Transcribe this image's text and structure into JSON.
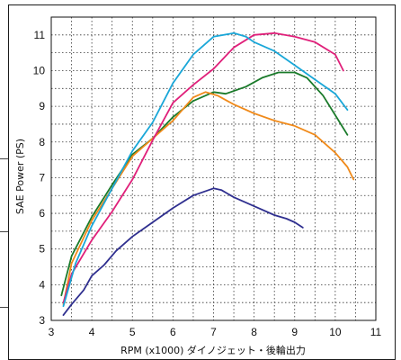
{
  "chart_data": {
    "type": "line",
    "title": "",
    "xlabel": "RPM (x1000) ダイノジェット・後輪出力",
    "ylabel": "SAE Power (PS)",
    "xlim": [
      3,
      11
    ],
    "ylim": [
      3,
      11.5
    ],
    "x_ticks": [
      "3",
      "4",
      "5",
      "6",
      "7",
      "8",
      "9",
      "10",
      "11"
    ],
    "y_ticks": [
      "3",
      "4",
      "5",
      "6",
      "7",
      "8",
      "9",
      "10",
      "11"
    ],
    "grid": true,
    "grid_minor": true,
    "legend": "none",
    "series": [
      {
        "color": "#2f2f8f",
        "points": [
          [
            3.3,
            3.15
          ],
          [
            3.5,
            3.45
          ],
          [
            3.8,
            3.85
          ],
          [
            4.0,
            4.25
          ],
          [
            4.3,
            4.55
          ],
          [
            4.6,
            4.95
          ],
          [
            5.0,
            5.35
          ],
          [
            5.5,
            5.75
          ],
          [
            6.0,
            6.15
          ],
          [
            6.5,
            6.5
          ],
          [
            7.0,
            6.7
          ],
          [
            7.2,
            6.65
          ],
          [
            7.5,
            6.45
          ],
          [
            8.0,
            6.2
          ],
          [
            8.5,
            5.95
          ],
          [
            8.8,
            5.85
          ],
          [
            9.0,
            5.75
          ],
          [
            9.2,
            5.6
          ]
        ]
      },
      {
        "color": "#1a7a2a",
        "points": [
          [
            3.25,
            3.7
          ],
          [
            3.5,
            4.8
          ],
          [
            4.0,
            5.9
          ],
          [
            4.5,
            6.8
          ],
          [
            5.0,
            7.65
          ],
          [
            5.5,
            8.1
          ],
          [
            6.0,
            8.7
          ],
          [
            6.5,
            9.15
          ],
          [
            7.0,
            9.4
          ],
          [
            7.3,
            9.35
          ],
          [
            7.8,
            9.55
          ],
          [
            8.2,
            9.8
          ],
          [
            8.6,
            9.95
          ],
          [
            9.0,
            9.95
          ],
          [
            9.3,
            9.8
          ],
          [
            9.7,
            9.3
          ],
          [
            10.0,
            8.75
          ],
          [
            10.3,
            8.2
          ]
        ]
      },
      {
        "color": "#f08a1a",
        "points": [
          [
            3.3,
            3.45
          ],
          [
            3.5,
            4.6
          ],
          [
            4.0,
            5.8
          ],
          [
            4.5,
            6.7
          ],
          [
            5.0,
            7.6
          ],
          [
            5.5,
            8.1
          ],
          [
            6.0,
            8.6
          ],
          [
            6.5,
            9.25
          ],
          [
            6.8,
            9.4
          ],
          [
            7.1,
            9.3
          ],
          [
            7.5,
            9.05
          ],
          [
            8.0,
            8.8
          ],
          [
            8.5,
            8.6
          ],
          [
            9.0,
            8.45
          ],
          [
            9.5,
            8.2
          ],
          [
            10.0,
            7.7
          ],
          [
            10.3,
            7.3
          ],
          [
            10.45,
            6.95
          ]
        ]
      },
      {
        "color": "#e0207a",
        "points": [
          [
            3.3,
            3.5
          ],
          [
            3.5,
            4.3
          ],
          [
            4.0,
            5.25
          ],
          [
            4.5,
            6.05
          ],
          [
            5.0,
            6.95
          ],
          [
            5.5,
            8.05
          ],
          [
            6.0,
            9.1
          ],
          [
            6.5,
            9.6
          ],
          [
            7.0,
            10.05
          ],
          [
            7.5,
            10.65
          ],
          [
            8.0,
            11.0
          ],
          [
            8.5,
            11.05
          ],
          [
            9.0,
            10.95
          ],
          [
            9.5,
            10.8
          ],
          [
            10.0,
            10.45
          ],
          [
            10.2,
            10.0
          ]
        ]
      },
      {
        "color": "#1aa7d8",
        "points": [
          [
            3.3,
            3.4
          ],
          [
            3.6,
            4.6
          ],
          [
            4.0,
            5.65
          ],
          [
            4.5,
            6.7
          ],
          [
            5.0,
            7.75
          ],
          [
            5.5,
            8.55
          ],
          [
            6.0,
            9.65
          ],
          [
            6.5,
            10.45
          ],
          [
            7.0,
            10.95
          ],
          [
            7.5,
            11.05
          ],
          [
            7.8,
            10.95
          ],
          [
            8.0,
            10.8
          ],
          [
            8.5,
            10.55
          ],
          [
            9.0,
            10.15
          ],
          [
            9.5,
            9.75
          ],
          [
            10.0,
            9.35
          ],
          [
            10.3,
            8.9
          ]
        ]
      }
    ]
  }
}
